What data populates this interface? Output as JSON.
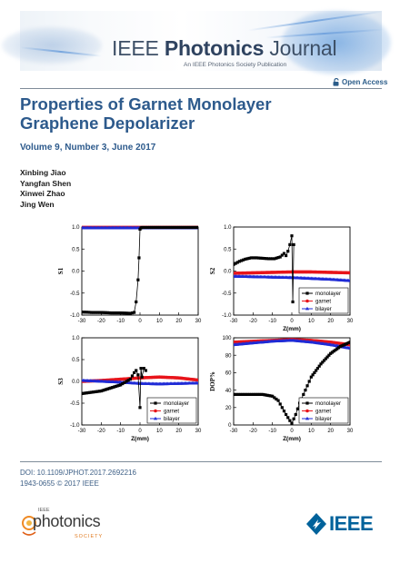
{
  "header": {
    "journal_prefix": "IEEE ",
    "journal_name_bold": "Photonics",
    "journal_suffix": " Journal",
    "journal_subtitle": "An IEEE Photonics Society Publication",
    "open_access_label": "Open Access"
  },
  "article": {
    "title": "Properties of Garnet Monolayer Graphene Depolarizer",
    "issue": "Volume 9, Number 3, June 2017",
    "authors": [
      "Xinbing Jiao",
      "Yangfan Shen",
      "Xinwei Zhao",
      "Jing Wen"
    ]
  },
  "footer": {
    "doi": "DOI: 10.1109/JPHOT.2017.2692216",
    "issn": "1943-0655 © 2017 IEEE",
    "society_small": "IEEE",
    "society_name": "photonics",
    "society_word": "SOCIETY",
    "ieee_logo_text": "IEEE"
  },
  "colors": {
    "title_blue": "#2d5a8c",
    "monolayer": "#000000",
    "garnet": "#e8141a",
    "bilayer": "#1f2bd6",
    "ieee_blue": "#00629b"
  },
  "chart_data": [
    {
      "type": "line",
      "id": "s1",
      "ylabel": "S1",
      "xlabel": "",
      "xlim": [
        -30,
        30
      ],
      "ylim": [
        -1.0,
        1.0
      ],
      "xticks": [
        -30,
        -20,
        -10,
        0,
        10,
        20,
        30
      ],
      "yticks": [
        -1.0,
        -0.5,
        0.0,
        0.5,
        1.0
      ],
      "legend_position": "none",
      "series": [
        {
          "name": "monolayer",
          "x": [
            -30,
            -25,
            -20,
            -15,
            -10,
            -5,
            -3,
            -2,
            -1,
            -0.5,
            0,
            0.5,
            1,
            2,
            5,
            10,
            15,
            20,
            25,
            30
          ],
          "y": [
            -0.93,
            -0.94,
            -0.94,
            -0.95,
            -0.95,
            -0.96,
            -0.94,
            -0.7,
            -0.2,
            0.3,
            0.95,
            0.98,
            0.99,
            0.99,
            0.99,
            0.99,
            0.99,
            0.99,
            0.99,
            0.99
          ]
        },
        {
          "name": "garnet",
          "x": [
            -30,
            -20,
            -10,
            0,
            10,
            20,
            30
          ],
          "y": [
            0.99,
            0.99,
            0.99,
            0.99,
            0.99,
            0.99,
            0.99
          ]
        },
        {
          "name": "bilayer",
          "x": [
            -30,
            -20,
            -10,
            0,
            10,
            20,
            30
          ],
          "y": [
            0.98,
            0.98,
            0.98,
            0.98,
            0.98,
            0.98,
            0.98
          ]
        }
      ]
    },
    {
      "type": "line",
      "id": "s2",
      "ylabel": "S2",
      "xlabel": "Z(mm)",
      "xlim": [
        -30,
        30
      ],
      "ylim": [
        -1.0,
        1.0
      ],
      "xticks": [
        -30,
        -20,
        -10,
        0,
        10,
        20,
        30
      ],
      "yticks": [
        -1.0,
        -0.5,
        0.0,
        0.5,
        1.0
      ],
      "legend_position": "bottom-right",
      "series": [
        {
          "name": "monolayer",
          "x": [
            -30,
            -27,
            -24,
            -21,
            -18,
            -15,
            -12,
            -9,
            -6,
            -4,
            -3,
            -2,
            -1,
            0,
            0.5,
            1
          ],
          "y": [
            0.15,
            0.22,
            0.27,
            0.3,
            0.3,
            0.29,
            0.28,
            0.28,
            0.32,
            0.4,
            0.35,
            0.45,
            0.6,
            0.8,
            -0.7,
            0.6
          ]
        },
        {
          "name": "garnet",
          "x": [
            -30,
            -20,
            -10,
            0,
            10,
            20,
            30
          ],
          "y": [
            -0.05,
            -0.04,
            -0.03,
            -0.02,
            -0.02,
            -0.03,
            -0.04
          ]
        },
        {
          "name": "bilayer",
          "x": [
            -30,
            -20,
            -10,
            0,
            10,
            20,
            30
          ],
          "y": [
            -0.12,
            -0.13,
            -0.14,
            -0.15,
            -0.17,
            -0.19,
            -0.22
          ]
        }
      ]
    },
    {
      "type": "line",
      "id": "s3",
      "ylabel": "S3",
      "xlabel": "Z(mm)",
      "xlim": [
        -30,
        30
      ],
      "ylim": [
        -1.0,
        1.0
      ],
      "xticks": [
        -30,
        -20,
        -10,
        0,
        10,
        20,
        30
      ],
      "yticks": [
        -1.0,
        -0.5,
        0.0,
        0.5,
        1.0
      ],
      "legend_position": "bottom-right",
      "series": [
        {
          "name": "monolayer",
          "x": [
            -30,
            -25,
            -20,
            -15,
            -10,
            -7,
            -5,
            -3,
            -2,
            -1,
            0,
            0.5,
            1,
            2,
            3
          ],
          "y": [
            -0.28,
            -0.25,
            -0.22,
            -0.15,
            -0.08,
            0.0,
            0.05,
            0.2,
            0.25,
            0.15,
            -0.6,
            0.3,
            0.1,
            0.3,
            0.25
          ]
        },
        {
          "name": "garnet",
          "x": [
            -30,
            -20,
            -10,
            0,
            10,
            20,
            30
          ],
          "y": [
            0.0,
            0.02,
            0.05,
            0.08,
            0.1,
            0.08,
            0.03
          ]
        },
        {
          "name": "bilayer",
          "x": [
            -30,
            -20,
            -10,
            0,
            10,
            20,
            30
          ],
          "y": [
            0.02,
            0.0,
            -0.02,
            -0.05,
            -0.06,
            -0.05,
            -0.04
          ]
        }
      ]
    },
    {
      "type": "line",
      "id": "dop",
      "ylabel": "DOP%",
      "xlabel": "Z(mm)",
      "xlim": [
        -30,
        30
      ],
      "ylim": [
        0,
        100
      ],
      "xticks": [
        -30,
        -20,
        -10,
        0,
        10,
        20,
        30
      ],
      "yticks": [
        0,
        20,
        40,
        60,
        80,
        100
      ],
      "legend_position": "bottom-right",
      "series": [
        {
          "name": "monolayer",
          "x": [
            -30,
            -20,
            -15,
            -10,
            -7,
            -5,
            -3,
            -1,
            0,
            2,
            4,
            6,
            10,
            15,
            20,
            25,
            30
          ],
          "y": [
            35,
            35,
            35,
            33,
            28,
            20,
            12,
            5,
            2,
            12,
            25,
            35,
            55,
            70,
            82,
            90,
            95
          ]
        },
        {
          "name": "garnet",
          "x": [
            -30,
            -20,
            -10,
            0,
            10,
            20,
            30
          ],
          "y": [
            95,
            96,
            97,
            98,
            97,
            95,
            92
          ]
        },
        {
          "name": "bilayer",
          "x": [
            -30,
            -20,
            -10,
            0,
            10,
            20,
            30
          ],
          "y": [
            92,
            94,
            96,
            97,
            95,
            92,
            88
          ]
        }
      ]
    }
  ]
}
